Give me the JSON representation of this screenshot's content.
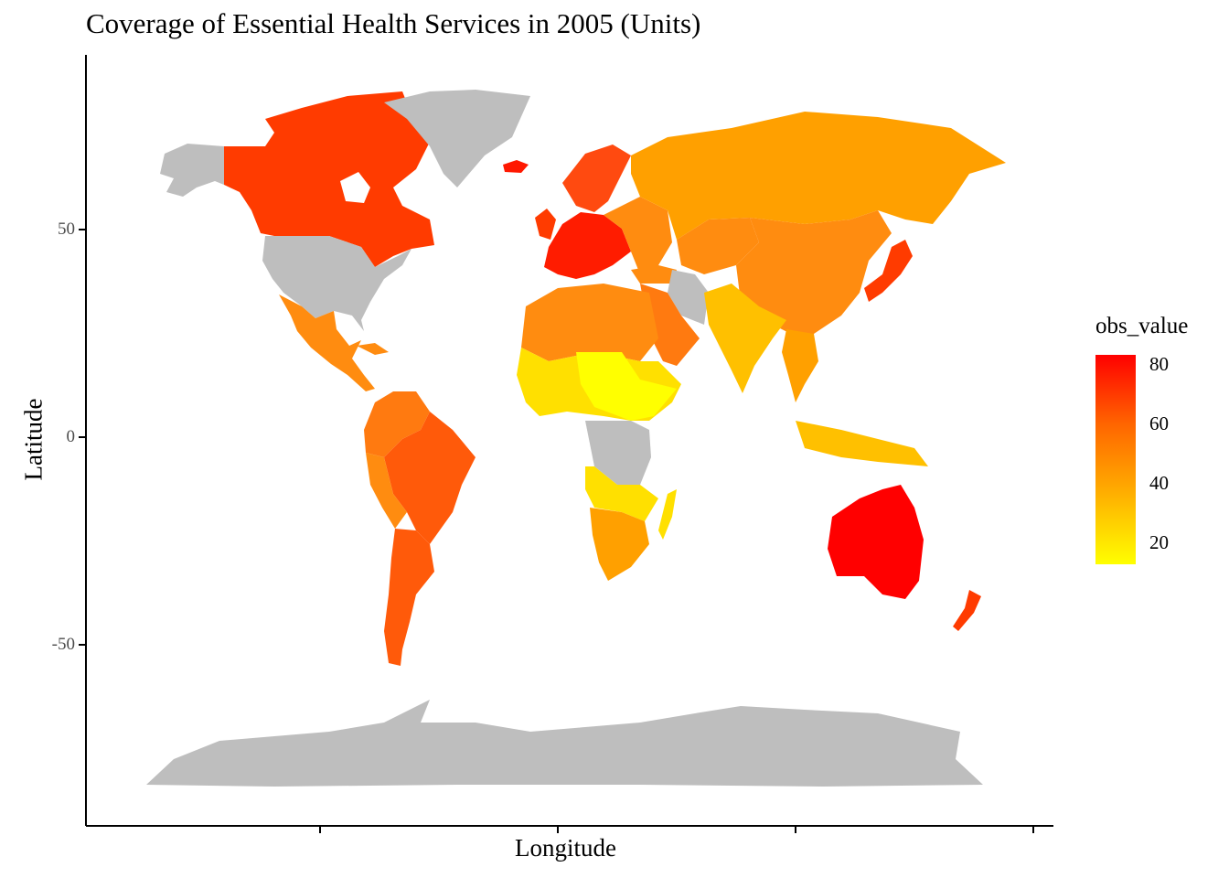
{
  "title": "Coverage of Essential Health Services in 2005 (Units)",
  "xlabel": "Longitude",
  "ylabel": "Latitude",
  "yticks": [
    "50",
    "0",
    "-50"
  ],
  "legend": {
    "title": "obs_value",
    "labels": [
      "80",
      "60",
      "40",
      "20"
    ],
    "low_color": "#ffff00",
    "high_color": "#ff0000",
    "missing_color": "#bebebe"
  },
  "chart_data": {
    "type": "heatmap",
    "subtype": "choropleth-world-map",
    "variable": "obs_value",
    "year": 2005,
    "color_range": [
      12,
      83
    ],
    "regions": [
      {
        "name": "Canada",
        "value": 75
      },
      {
        "name": "United States",
        "value": null
      },
      {
        "name": "Greenland",
        "value": null
      },
      {
        "name": "Mexico",
        "value": 62
      },
      {
        "name": "Brazil",
        "value": 68
      },
      {
        "name": "Argentina",
        "value": 70
      },
      {
        "name": "Western Europe",
        "value": 80
      },
      {
        "name": "Russia",
        "value": 55
      },
      {
        "name": "China",
        "value": 62
      },
      {
        "name": "India",
        "value": 40
      },
      {
        "name": "Iran",
        "value": null
      },
      {
        "name": "Sahel Africa",
        "value": 20
      },
      {
        "name": "Central Africa",
        "value": null
      },
      {
        "name": "Southern Africa",
        "value": 50
      },
      {
        "name": "Japan",
        "value": 78
      },
      {
        "name": "Australia",
        "value": 83
      },
      {
        "name": "New Zealand",
        "value": 78
      },
      {
        "name": "Antarctica",
        "value": null
      }
    ]
  }
}
